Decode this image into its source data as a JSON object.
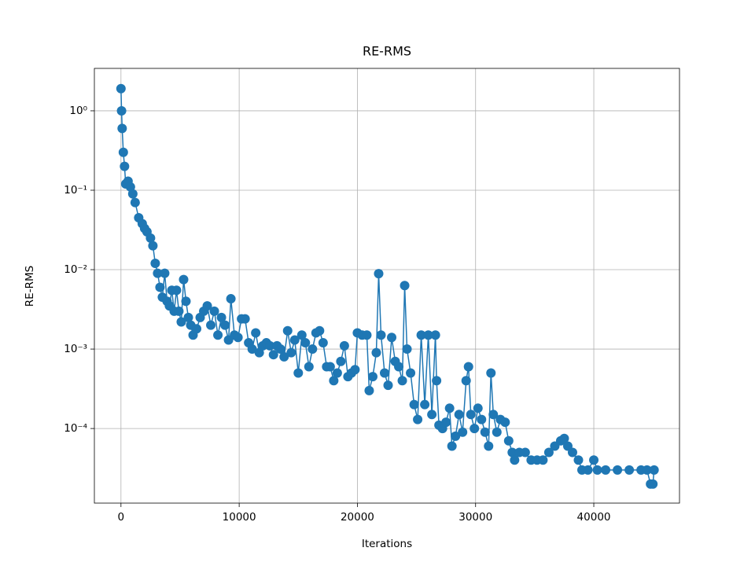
{
  "chart_data": {
    "type": "line",
    "title": "RE-RMS",
    "xlabel": "Iterations",
    "ylabel": "RE-RMS",
    "color": "#1f77b4",
    "marker": "circle",
    "yscale": "log",
    "grid": true,
    "xlim": [
      -2250,
      47250
    ],
    "xticks": [
      0,
      10000,
      20000,
      30000,
      40000
    ],
    "ylim": [
      1.15e-05,
      3.42
    ],
    "yticks": [
      {
        "value": 0.0001,
        "label": "10⁻⁴"
      },
      {
        "value": 0.001,
        "label": "10⁻³"
      },
      {
        "value": 0.01,
        "label": "10⁻²"
      },
      {
        "value": 0.1,
        "label": "10⁻¹"
      },
      {
        "value": 1,
        "label": "10⁰"
      }
    ],
    "x": [
      0,
      50,
      100,
      200,
      300,
      400,
      600,
      800,
      1000,
      1200,
      1500,
      1800,
      2000,
      2200,
      2500,
      2700,
      2900,
      3100,
      3300,
      3500,
      3700,
      3900,
      4100,
      4300,
      4500,
      4700,
      4900,
      5100,
      5300,
      5500,
      5700,
      5900,
      6100,
      6400,
      6700,
      7000,
      7300,
      7600,
      7900,
      8200,
      8500,
      8800,
      9100,
      9300,
      9600,
      9900,
      10200,
      10500,
      10800,
      11100,
      11400,
      11700,
      12000,
      12300,
      12600,
      12900,
      13200,
      13500,
      13800,
      14100,
      14400,
      14700,
      15000,
      15300,
      15600,
      15900,
      16200,
      16500,
      16800,
      17100,
      17400,
      17700,
      18000,
      18300,
      18600,
      18900,
      19200,
      19500,
      19800,
      20000,
      20400,
      20800,
      21000,
      21300,
      21600,
      21800,
      22000,
      22300,
      22600,
      22900,
      23200,
      23500,
      23800,
      24000,
      24200,
      24500,
      24800,
      25100,
      25400,
      25700,
      26000,
      26300,
      26600,
      26700,
      26900,
      27200,
      27500,
      27800,
      28000,
      28300,
      28600,
      28900,
      29200,
      29400,
      29600,
      29900,
      30200,
      30500,
      30800,
      31100,
      31300,
      31500,
      31800,
      32100,
      32500,
      32800,
      33100,
      33300,
      33700,
      34200,
      34700,
      35200,
      35700,
      36200,
      36700,
      37200,
      37500,
      37800,
      38200,
      38700,
      39000,
      39500,
      40000,
      40300,
      41000,
      42000,
      43000,
      44000,
      44500,
      44800,
      45000,
      45100
    ],
    "values": [
      1.9,
      1.0,
      0.6,
      0.3,
      0.2,
      0.12,
      0.13,
      0.11,
      0.09,
      0.07,
      0.045,
      0.038,
      0.033,
      0.03,
      0.025,
      0.02,
      0.012,
      0.009,
      0.006,
      0.0045,
      0.009,
      0.004,
      0.0035,
      0.0055,
      0.003,
      0.0055,
      0.003,
      0.0022,
      0.0075,
      0.004,
      0.0025,
      0.002,
      0.0015,
      0.0018,
      0.0025,
      0.003,
      0.0035,
      0.002,
      0.003,
      0.0015,
      0.0025,
      0.002,
      0.0013,
      0.0043,
      0.0015,
      0.0014,
      0.0024,
      0.0024,
      0.0012,
      0.001,
      0.0016,
      0.0009,
      0.0011,
      0.0012,
      0.0011,
      0.00085,
      0.0011,
      0.001,
      0.0008,
      0.0017,
      0.0009,
      0.0013,
      0.0005,
      0.0015,
      0.0012,
      0.0006,
      0.001,
      0.0016,
      0.0017,
      0.0012,
      0.0006,
      0.0006,
      0.0004,
      0.0005,
      0.0007,
      0.0011,
      0.00045,
      0.0005,
      0.00055,
      0.0016,
      0.0015,
      0.0015,
      0.0003,
      0.00045,
      0.0009,
      0.0089,
      0.0015,
      0.0005,
      0.00035,
      0.0014,
      0.0007,
      0.0006,
      0.0004,
      0.0063,
      0.001,
      0.0005,
      0.0002,
      0.00013,
      0.0015,
      0.0002,
      0.0015,
      0.00015,
      0.0015,
      0.0004,
      0.00011,
      0.0001,
      0.00012,
      0.00018,
      6e-05,
      8e-05,
      0.00015,
      9e-05,
      0.0004,
      0.0006,
      0.00015,
      0.0001,
      0.00018,
      0.00013,
      9e-05,
      6e-05,
      0.0005,
      0.00015,
      9e-05,
      0.00013,
      0.00012,
      7e-05,
      5e-05,
      4e-05,
      5e-05,
      5e-05,
      4e-05,
      4e-05,
      4e-05,
      5e-05,
      6e-05,
      7e-05,
      7.5e-05,
      6e-05,
      5e-05,
      4e-05,
      3e-05,
      3e-05,
      4e-05,
      3e-05,
      3e-05,
      3e-05,
      3e-05,
      3e-05,
      3e-05,
      2e-05,
      2e-05,
      3e-05
    ]
  }
}
